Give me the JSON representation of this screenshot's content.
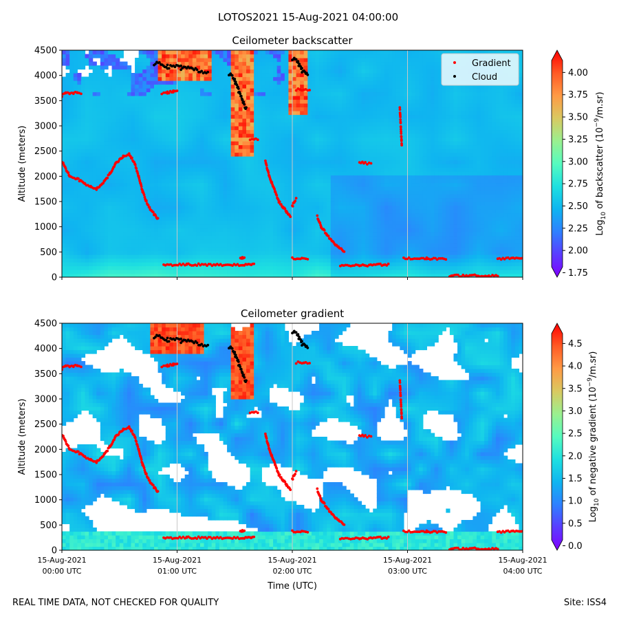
{
  "figure": {
    "suptitle": "LOTOS2021 15-Aug-2021 04:00:00",
    "footer_left": "REAL TIME DATA, NOT CHECKED FOR QUALITY",
    "footer_right": "Site: ISS4"
  },
  "colors": {
    "gradient_marker": "#ff0000",
    "cloud_marker": "#000000",
    "gridline": "#c8c8c8",
    "colormap": [
      "#8000ff",
      "#5a3cff",
      "#2e80ff",
      "#0fb5f0",
      "#1ee0e0",
      "#56fbbf",
      "#9af08f",
      "#d9c961",
      "#ff9a45",
      "#ff5a24",
      "#ff0000"
    ]
  },
  "chart_data": [
    {
      "type": "heatmap",
      "title": "Ceilometer backscatter",
      "ylabel": "Altitude (meters)",
      "ylim": [
        0,
        4500
      ],
      "yticks": [
        "0",
        "500",
        "1000",
        "1500",
        "2000",
        "2500",
        "3000",
        "3500",
        "4000",
        "4500"
      ],
      "xlim": [
        "00:00",
        "04:00"
      ],
      "xticks": [
        "00:00",
        "01:00",
        "02:00",
        "03:00",
        "04:00"
      ],
      "colorbar": {
        "label": "Log10 of backscatter (10^-9/m.sr)",
        "range": [
          1.7,
          4.25
        ],
        "ticks": [
          "1.75",
          "2.00",
          "2.25",
          "2.50",
          "2.75",
          "3.00",
          "3.25",
          "3.50",
          "3.75",
          "4.00"
        ]
      },
      "legend": {
        "position": "top-right",
        "entries": [
          "Gradient",
          "Cloud"
        ]
      },
      "series": [
        {
          "name": "Gradient",
          "marker": "dot",
          "color": "#ff0000",
          "segments": [
            {
              "x": [
                "00:00",
                "00:04",
                "00:08",
                "00:12",
                "00:15",
                "00:18",
                "00:22",
                "00:25",
                "00:28",
                "00:32",
                "00:35",
                "00:38",
                "00:40",
                "00:42",
                "00:44",
                "00:46",
                "00:48",
                "00:50"
              ],
              "y": [
                2300,
                2000,
                1950,
                1850,
                1800,
                1750,
                1900,
                2050,
                2250,
                2400,
                2450,
                2250,
                2000,
                1700,
                1500,
                1350,
                1250,
                1150
              ]
            },
            {
              "x": [
                "00:00",
                "00:02",
                "00:04",
                "00:06",
                "00:08",
                "00:10"
              ],
              "y": [
                3600,
                3650,
                3650,
                3650,
                3650,
                3650
              ]
            },
            {
              "x": [
                "00:53",
                "01:05",
                "01:20",
                "01:35",
                "01:40"
              ],
              "y": [
                240,
                250,
                245,
                240,
                260
              ]
            },
            {
              "x": [
                "00:52",
                "00:55",
                "00:58",
                "01:00"
              ],
              "y": [
                3650,
                3660,
                3680,
                3700
              ]
            },
            {
              "x": [
                "01:38",
                "01:40",
                "01:42"
              ],
              "y": [
                2730,
                2730,
                2730
              ]
            },
            {
              "x": [
                "01:33",
                "01:34",
                "01:35"
              ],
              "y": [
                370,
                380,
                390
              ]
            },
            {
              "x": [
                "01:46",
                "01:48",
                "01:51",
                "01:53",
                "01:55",
                "01:57",
                "01:59"
              ],
              "y": [
                2300,
                2000,
                1700,
                1500,
                1400,
                1300,
                1200
              ]
            },
            {
              "x": [
                "02:00",
                "02:01",
                "02:02"
              ],
              "y": [
                1400,
                1500,
                1550
              ]
            },
            {
              "x": [
                "02:00",
                "02:05",
                "02:08"
              ],
              "y": [
                370,
                360,
                370
              ]
            },
            {
              "x": [
                "02:02",
                "02:06",
                "02:09"
              ],
              "y": [
                3720,
                3720,
                3720
              ]
            },
            {
              "x": [
                "02:13",
                "02:15",
                "02:18",
                "02:21",
                "02:24",
                "02:27"
              ],
              "y": [
                1200,
                1000,
                850,
                700,
                600,
                500
              ]
            },
            {
              "x": [
                "02:25",
                "02:35",
                "02:50"
              ],
              "y": [
                230,
                230,
                250
              ]
            },
            {
              "x": [
                "02:35",
                "02:38",
                "02:41"
              ],
              "y": [
                2280,
                2260,
                2250
              ]
            },
            {
              "x": [
                "02:56",
                "02:57"
              ],
              "y": [
                3350,
                2620
              ]
            },
            {
              "x": [
                "02:58",
                "03:10",
                "03:20"
              ],
              "y": [
                370,
                370,
                360
              ]
            },
            {
              "x": [
                "03:22",
                "03:35",
                "03:47"
              ],
              "y": [
                30,
                30,
                30
              ]
            },
            {
              "x": [
                "03:47",
                "03:55",
                "04:00"
              ],
              "y": [
                370,
                370,
                370
              ]
            }
          ]
        },
        {
          "name": "Cloud",
          "marker": "dot",
          "color": "#000000",
          "segments": [
            {
              "x": [
                "00:48",
                "00:55",
                "01:02",
                "01:08",
                "01:12",
                "01:16"
              ],
              "y": [
                4250,
                4180,
                4150,
                4130,
                4100,
                4050
              ]
            },
            {
              "x": [
                "01:27",
                "01:30",
                "01:32",
                "01:34",
                "01:36"
              ],
              "y": [
                4050,
                3900,
                3700,
                3500,
                3350
              ]
            },
            {
              "x": [
                "02:00",
                "02:03",
                "02:05",
                "02:08"
              ],
              "y": [
                4350,
                4250,
                4100,
                4000
              ]
            }
          ]
        }
      ]
    },
    {
      "type": "heatmap",
      "title": "Ceilometer gradient",
      "xlabel": "Time (UTC)",
      "ylabel": "Altitude (meters)",
      "ylim": [
        0,
        4500
      ],
      "yticks": [
        "0",
        "500",
        "1000",
        "1500",
        "2000",
        "2500",
        "3000",
        "3500",
        "4000",
        "4500"
      ],
      "xlim": [
        "00:00",
        "04:00"
      ],
      "xticks": [
        "00:00",
        "01:00",
        "02:00",
        "03:00",
        "04:00"
      ],
      "xticklabels": [
        [
          "15-Aug-2021",
          "00:00 UTC"
        ],
        [
          "15-Aug-2021",
          "01:00 UTC"
        ],
        [
          "15-Aug-2021",
          "02:00 UTC"
        ],
        [
          "15-Aug-2021",
          "03:00 UTC"
        ],
        [
          "15-Aug-2021",
          "04:00 UTC"
        ]
      ],
      "colorbar": {
        "label": "Log10 of negative gradient (10^-9/m.sr)",
        "range": [
          -0.1,
          4.95
        ],
        "ticks": [
          "0.0",
          "0.5",
          "1.0",
          "1.5",
          "2.0",
          "2.5",
          "3.0",
          "3.5",
          "4.0",
          "4.5"
        ]
      },
      "series": [
        {
          "name": "Gradient",
          "marker": "dot",
          "color": "#ff0000",
          "same_as": "chart_data.0.series.0"
        },
        {
          "name": "Cloud",
          "marker": "dot",
          "color": "#000000",
          "same_as": "chart_data.0.series.1"
        }
      ]
    }
  ]
}
